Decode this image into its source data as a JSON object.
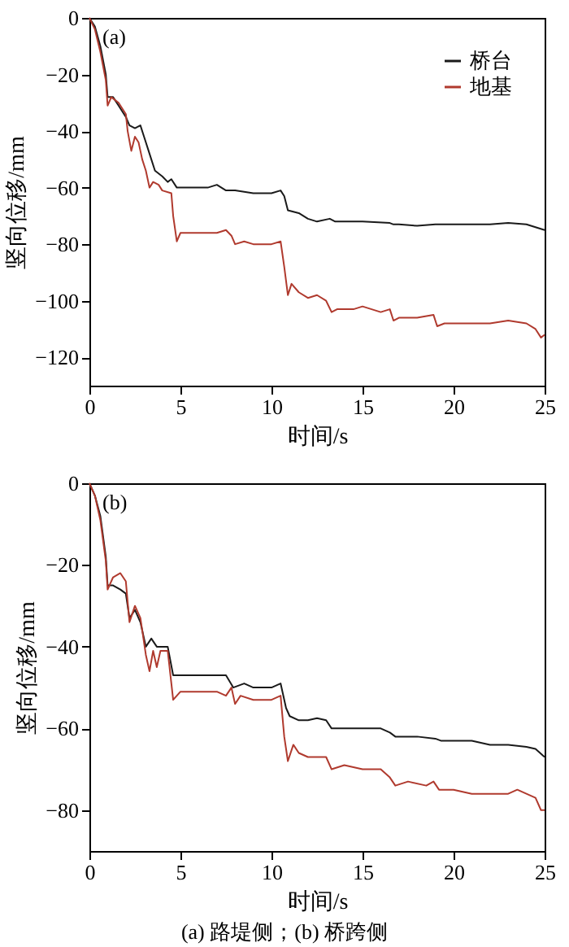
{
  "chart_data": [
    {
      "type": "line",
      "xlabel": "时间/s",
      "ylabel": "竖向位移/mm",
      "xlim": [
        0,
        25
      ],
      "xticks": [
        0,
        5,
        10,
        15,
        20,
        25
      ],
      "ylim": [
        -130,
        0
      ],
      "yticks": [
        -120,
        -100,
        -80,
        -60,
        -40,
        -20,
        0
      ],
      "grid": false,
      "legend": "top right",
      "annotations": [
        "(a)"
      ],
      "series": [
        {
          "name": "桥台",
          "color": "#1a1a1a",
          "x": [
            0,
            0.3,
            0.6,
            0.9,
            1.0,
            1.3,
            1.6,
            2.0,
            2.2,
            2.5,
            2.8,
            3.0,
            3.3,
            3.6,
            4.0,
            4.3,
            4.5,
            4.8,
            5.5,
            6.5,
            7.0,
            7.5,
            8.0,
            9,
            10,
            10.5,
            10.7,
            10.9,
            11.5,
            12,
            12.5,
            13.2,
            13.5,
            15,
            16.5,
            16.7,
            17,
            18,
            19,
            20,
            21,
            22,
            23,
            24,
            24.5,
            25
          ],
          "values": [
            0,
            -3,
            -10,
            -20,
            -28,
            -28,
            -31,
            -35,
            -38,
            -39,
            -38,
            -42,
            -48,
            -54,
            -56,
            -58,
            -57,
            -60,
            -60,
            -60,
            -59,
            -61,
            -61,
            -62,
            -62,
            -61,
            -63,
            -68,
            -69,
            -71,
            -72,
            -71,
            -72,
            -72,
            -72.5,
            -73,
            -73,
            -73.5,
            -73,
            -73,
            -73,
            -73,
            -72.5,
            -73,
            -74,
            -75
          ]
        },
        {
          "name": "地基",
          "color": "#b03a2e",
          "x": [
            0,
            0.3,
            0.6,
            0.9,
            1.0,
            1.2,
            1.6,
            2.0,
            2.1,
            2.3,
            2.5,
            2.7,
            2.9,
            3.1,
            3.3,
            3.5,
            3.8,
            4.0,
            4.5,
            4.6,
            4.8,
            5.0,
            6,
            7,
            7.5,
            7.8,
            8.0,
            8.5,
            9,
            10,
            10.5,
            10.7,
            10.9,
            11.1,
            11.5,
            12,
            12.5,
            13,
            13.3,
            13.6,
            14.5,
            15,
            16,
            16.5,
            16.7,
            17,
            18,
            18.9,
            19.1,
            19.5,
            20,
            21,
            22,
            23,
            24,
            24.5,
            24.8,
            25
          ],
          "values": [
            0,
            -4,
            -12,
            -22,
            -31,
            -28,
            -30,
            -34,
            -40,
            -47,
            -42,
            -44,
            -50,
            -54,
            -60,
            -58,
            -59,
            -61,
            -62,
            -70,
            -79,
            -76,
            -76,
            -76,
            -75,
            -77,
            -80,
            -79,
            -80,
            -80,
            -79,
            -88,
            -98,
            -94,
            -97,
            -99,
            -98,
            -100,
            -104,
            -103,
            -103,
            -102,
            -104,
            -103,
            -107,
            -106,
            -106,
            -105,
            -109,
            -108,
            -108,
            -108,
            -108,
            -107,
            -108,
            -110,
            -113,
            -112
          ]
        }
      ]
    },
    {
      "type": "line",
      "xlabel": "时间/s",
      "ylabel": "竖向位移/mm",
      "xlim": [
        0,
        25
      ],
      "xticks": [
        0,
        5,
        10,
        15,
        20,
        25
      ],
      "ylim": [
        -90,
        0
      ],
      "yticks": [
        -80,
        -60,
        -40,
        -20,
        0
      ],
      "grid": false,
      "legend": "top right",
      "annotations": [
        "(b)",
        "(a) 路堤侧；(b) 桥跨侧"
      ],
      "series": [
        {
          "name": "桥台",
          "color": "#1a1a1a",
          "x": [
            0,
            0.3,
            0.6,
            0.9,
            1.0,
            1.3,
            1.7,
            2.0,
            2.2,
            2.5,
            2.8,
            3.1,
            3.4,
            3.7,
            4.0,
            4.3,
            4.6,
            5.0,
            6,
            7,
            7.5,
            7.9,
            8.5,
            9,
            10,
            10.5,
            10.8,
            11,
            11.5,
            12,
            12.5,
            13,
            13.3,
            14,
            15,
            16,
            16.5,
            16.8,
            18,
            19,
            19.3,
            20,
            21,
            22,
            23,
            24,
            24.5,
            25
          ],
          "values": [
            0,
            -3,
            -8,
            -18,
            -25,
            -25,
            -26,
            -27,
            -33,
            -31,
            -34,
            -40,
            -38,
            -40,
            -40,
            -40,
            -47,
            -47,
            -47,
            -47,
            -47,
            -50,
            -49,
            -50,
            -50,
            -49,
            -55,
            -57,
            -58,
            -58,
            -57.5,
            -58,
            -60,
            -60,
            -60,
            -60,
            -61,
            -62,
            -62,
            -62.5,
            -63,
            -63,
            -63,
            -64,
            -64,
            -64.5,
            -65,
            -67
          ]
        },
        {
          "name": "地基",
          "color": "#b03a2e",
          "x": [
            0,
            0.3,
            0.6,
            0.9,
            1.0,
            1.3,
            1.7,
            2.0,
            2.2,
            2.5,
            2.8,
            3.1,
            3.3,
            3.5,
            3.7,
            3.9,
            4.3,
            4.6,
            5.0,
            6,
            7,
            7.5,
            7.8,
            8.0,
            8.3,
            9,
            10,
            10.5,
            10.7,
            10.9,
            11.2,
            11.5,
            12,
            13,
            13.3,
            14,
            15,
            16,
            16.5,
            16.8,
            17.5,
            18.5,
            18.9,
            19.2,
            20,
            21,
            22,
            23,
            23.5,
            24,
            24.5,
            24.8,
            25
          ],
          "values": [
            0,
            -3,
            -9,
            -19,
            -26,
            -23,
            -22,
            -24,
            -34,
            -30,
            -33,
            -42,
            -46,
            -41,
            -45,
            -41,
            -41,
            -53,
            -51,
            -51,
            -51,
            -52,
            -50,
            -54,
            -52,
            -53,
            -53,
            -52,
            -62,
            -68,
            -64,
            -66,
            -67,
            -67,
            -70,
            -69,
            -70,
            -70,
            -72,
            -74,
            -73,
            -74,
            -73,
            -75,
            -75,
            -76,
            -76,
            -76,
            -75,
            -76,
            -77,
            -80,
            -80
          ]
        }
      ]
    }
  ]
}
